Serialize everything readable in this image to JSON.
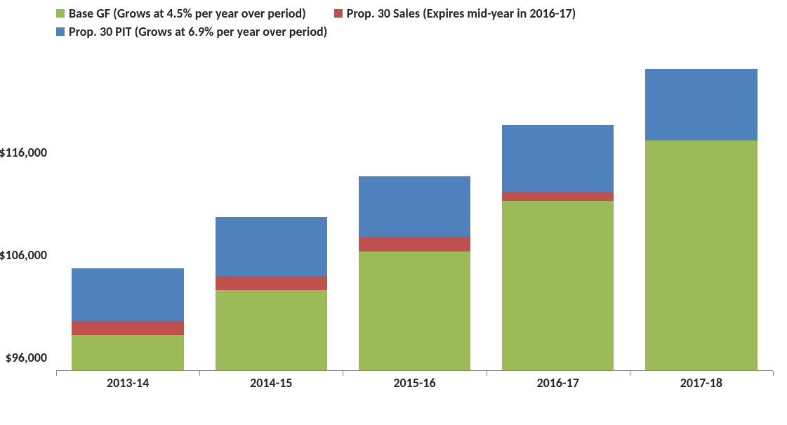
{
  "chart": {
    "type": "stacked-bar",
    "background_color": "#ffffff",
    "text_color": "#262626",
    "font_family": "Calibri, Arial, sans-serif",
    "legend": {
      "position": "top-left",
      "fontsize": 18,
      "fontweight": "bold",
      "swatch_size": 12,
      "rows": [
        [
          {
            "key": "base_gf",
            "label": "Base GF (Grows at 4.5% per year over period)",
            "color": "#9bbb59"
          },
          {
            "key": "sales",
            "label": "Prop. 30 Sales (Expires mid-year in 2016-17)",
            "color": "#c0504d"
          }
        ],
        [
          {
            "key": "pit",
            "label": "Prop. 30 PIT (Grows at 6.9% per year over period)",
            "color": "#4f81bd"
          }
        ]
      ]
    },
    "series_colors": {
      "base_gf": "#9bbb59",
      "sales": "#c0504d",
      "pit": "#4f81bd"
    },
    "stack_order": [
      "base_gf",
      "sales",
      "pit"
    ],
    "y_axis": {
      "min": 94700,
      "max": 126200,
      "ticks": [
        96000,
        106000,
        116000
      ],
      "tick_labels": [
        "$96,000",
        "$106,000",
        "$116,000"
      ],
      "fontsize": 18,
      "fontweight": "bold"
    },
    "x_axis": {
      "categories": [
        "2013-14",
        "2014-15",
        "2015-16",
        "2016-17",
        "2017-18"
      ],
      "fontsize": 18,
      "fontweight": "bold",
      "tick_color": "#888888"
    },
    "bar_width_ratio": 0.78,
    "data": [
      {
        "category": "2013-14",
        "base_gf": 98100,
        "sales": 1400,
        "pit": 5100
      },
      {
        "category": "2014-15",
        "base_gf": 102500,
        "sales": 1400,
        "pit": 5700
      },
      {
        "category": "2015-16",
        "base_gf": 106300,
        "sales": 1400,
        "pit": 5900
      },
      {
        "category": "2016-17",
        "base_gf": 111200,
        "sales": 800,
        "pit": 6600
      },
      {
        "category": "2017-18",
        "base_gf": 117100,
        "sales": 0,
        "pit": 7000
      }
    ]
  }
}
